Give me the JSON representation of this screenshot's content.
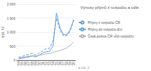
{
  "chart_data": {
    "type": "line",
    "title": "Výnosy příjmů z rozpočtu a odle",
    "ylabel": "mld. Kč",
    "annotations": [
      "a vol. 2"
    ],
    "categories": [
      "'04",
      "'05",
      "'06",
      "'07",
      "'08",
      "'09",
      "'10",
      "'11",
      "'12",
      "'13",
      "'14",
      "'15",
      "'16",
      "'17",
      "'18",
      "'19",
      "'20"
    ],
    "series": [
      {
        "name": "Příjmy z rozpočtu ČR",
        "color": "#5b9bd5",
        "line_style": "dashed",
        "values": [
          100,
          120,
          190,
          195,
          240,
          165,
          255,
          325,
          410,
          420,
          680,
          1490,
          1080,
          870,
          870,
          1050,
          1440
        ]
      },
      {
        "name": "Příjmy do rozpočtu EU",
        "color": "#5b9bd5",
        "line_style": "solid",
        "values": [
          50,
          65,
          95,
          110,
          150,
          110,
          175,
          255,
          295,
          315,
          510,
          1680,
          1150,
          910,
          910,
          1100,
          1450
        ]
      },
      {
        "name": "Čistá pozice ČR vůči rozpočtu",
        "color": "#b0b0b0",
        "line_style": "solid",
        "values": [
          90,
          100,
          115,
          140,
          155,
          140,
          170,
          195,
          220,
          235,
          280,
          305,
          345,
          385,
          440,
          530,
          650
        ]
      }
    ],
    "ylim": [
      0,
      2000
    ],
    "yticks": [
      0,
      500,
      {
        "value": 1000,
        "label": "1 000"
      },
      {
        "value": 1500,
        "label": "1 500"
      },
      {
        "value": 2000,
        "label": "2 000"
      }
    ],
    "grid": true,
    "legend": "right"
  }
}
